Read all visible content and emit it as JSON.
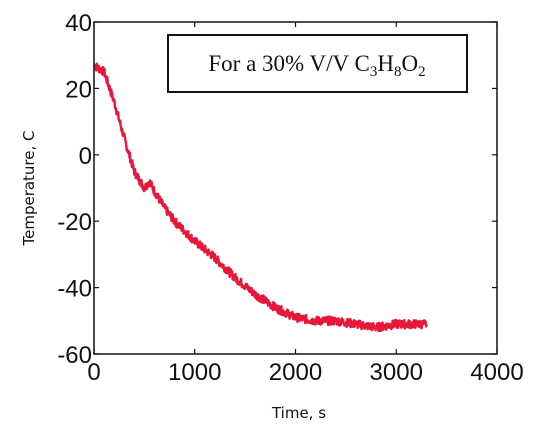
{
  "chart_data": {
    "type": "line",
    "xlabel": "Time, s",
    "ylabel": "Temperature, C",
    "xlim": [
      0,
      4000
    ],
    "ylim": [
      -60,
      40
    ],
    "x_ticks": [
      "0",
      "1000",
      "2000",
      "3000",
      "4000"
    ],
    "y_ticks": [
      "40",
      "20",
      "0",
      "-20",
      "-40",
      "-60"
    ],
    "grid": false,
    "legend": "none",
    "annotation": {
      "prefix": "For a 30% V/V C",
      "sub1": "3",
      "mid1": "H",
      "sub2": "8",
      "mid2": "O",
      "sub3": "2"
    },
    "series": [
      {
        "color": "#e8173a",
        "x": [
          0,
          100,
          200,
          300,
          400,
          500,
          550,
          600,
          700,
          800,
          900,
          1000,
          1200,
          1400,
          1600,
          1800,
          2000,
          2200,
          2400,
          2600,
          2800,
          3000,
          3200,
          3300
        ],
        "y": [
          27,
          25,
          16,
          5,
          -5,
          -10,
          -8,
          -11,
          -16,
          -20,
          -23,
          -26,
          -31,
          -37,
          -42,
          -46,
          -49,
          -50,
          -50,
          -51,
          -52,
          -51,
          -51,
          -51
        ]
      }
    ]
  }
}
